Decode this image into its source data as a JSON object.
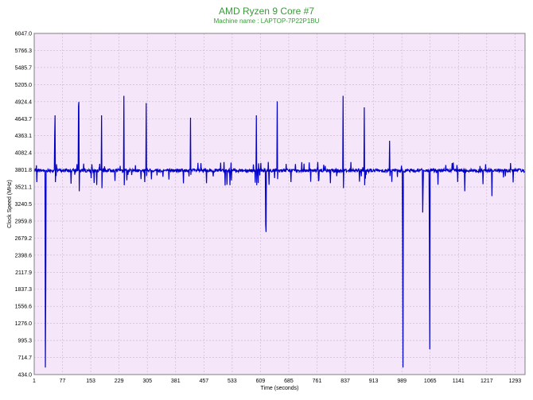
{
  "chart_data": {
    "type": "line",
    "title": "AMD Ryzen 9 Core #7",
    "subtitle": "Machine name : LAPTOP-7P22P1BU",
    "xlabel": "Time (seconds)",
    "ylabel": "Clock Speed (MHz)",
    "xlim": [
      1,
      1320
    ],
    "ylim": [
      434.0,
      6047.0
    ],
    "x_ticks": [
      "1",
      "77",
      "153",
      "229",
      "305",
      "381",
      "457",
      "533",
      "609",
      "685",
      "761",
      "837",
      "913",
      "989",
      "1065",
      "1141",
      "1217",
      "1293"
    ],
    "y_ticks": [
      "6047.0",
      "5766.3",
      "5485.7",
      "5205.0",
      "4924.4",
      "4643.7",
      "4363.1",
      "4082.4",
      "3801.8",
      "3521.1",
      "3240.5",
      "2959.8",
      "2679.2",
      "2398.6",
      "2117.9",
      "1837.3",
      "1556.6",
      "1276.0",
      "995.3",
      "714.7",
      "434.0"
    ],
    "grid": true,
    "colors": {
      "line": "#0000c8",
      "plot_bg": "#f5e6fa",
      "grid": "#c9b7c9",
      "title": "#3a9a3a"
    },
    "baseline": 3801.8,
    "series": [
      {
        "spikes": [
          [
            30,
            3800
          ],
          [
            31,
            550
          ],
          [
            32,
            1750
          ],
          [
            33,
            3790
          ],
          [
            55,
            3800
          ],
          [
            56,
            4380
          ],
          [
            57,
            4700
          ],
          [
            58,
            3600
          ],
          [
            119,
            3800
          ],
          [
            120,
            4850
          ],
          [
            121,
            4920
          ],
          [
            122,
            3450
          ],
          [
            123,
            3790
          ],
          [
            181,
            3800
          ],
          [
            182,
            4700
          ],
          [
            183,
            3500
          ],
          [
            184,
            3790
          ],
          [
            241,
            3800
          ],
          [
            242,
            5020
          ],
          [
            243,
            3550
          ],
          [
            244,
            3790
          ],
          [
            301,
            3800
          ],
          [
            302,
            4900
          ],
          [
            303,
            3700
          ],
          [
            420,
            3800
          ],
          [
            421,
            4660
          ],
          [
            422,
            3720
          ],
          [
            597,
            3800
          ],
          [
            598,
            4700
          ],
          [
            599,
            3550
          ],
          [
            600,
            3790
          ],
          [
            622,
            3800
          ],
          [
            623,
            2900
          ],
          [
            624,
            2780
          ],
          [
            625,
            3790
          ],
          [
            653,
            3800
          ],
          [
            654,
            4930
          ],
          [
            655,
            3650
          ],
          [
            656,
            3790
          ],
          [
            830,
            3800
          ],
          [
            831,
            5020
          ],
          [
            832,
            3500
          ],
          [
            833,
            3790
          ],
          [
            887,
            3800
          ],
          [
            888,
            4830
          ],
          [
            889,
            3550
          ],
          [
            890,
            3790
          ],
          [
            955,
            3800
          ],
          [
            956,
            4280
          ],
          [
            957,
            3700
          ],
          [
            990,
            3800
          ],
          [
            991,
            2700
          ],
          [
            992,
            550
          ],
          [
            993,
            3790
          ],
          [
            1044,
            3800
          ],
          [
            1045,
            3100
          ],
          [
            1046,
            3480
          ],
          [
            1047,
            3790
          ],
          [
            1062,
            3800
          ],
          [
            1063,
            2650
          ],
          [
            1064,
            850
          ],
          [
            1065,
            3790
          ],
          [
            1157,
            3800
          ],
          [
            1158,
            3450
          ],
          [
            1159,
            3790
          ],
          [
            1230,
            3800
          ],
          [
            1231,
            3370
          ],
          [
            1232,
            3790
          ]
        ]
      }
    ]
  }
}
